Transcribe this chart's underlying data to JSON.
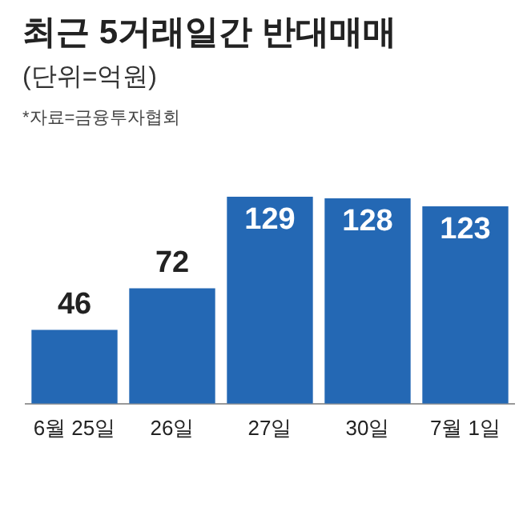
{
  "chart_data": {
    "type": "bar",
    "title": "최근 5거래일간 반대매매",
    "subtitle": "(단위=억원)",
    "annotations": [
      "*자료=금융투자협회"
    ],
    "categories": [
      "6월 25일",
      "26일",
      "27일",
      "30일",
      "7월 1일"
    ],
    "values": [
      46,
      72,
      129,
      128,
      123
    ],
    "color": "#2468b4",
    "data_labels": true,
    "grid": false,
    "legend": false
  }
}
